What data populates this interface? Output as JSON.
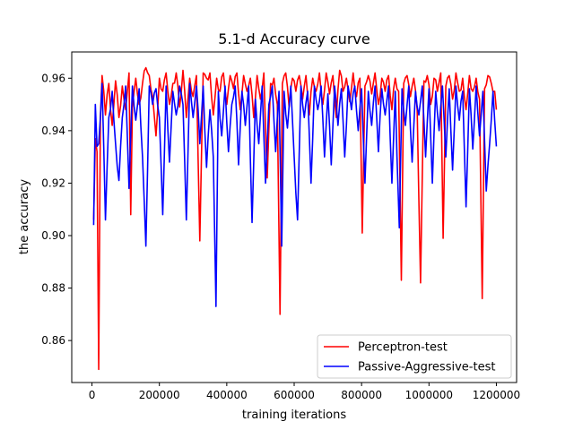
{
  "chart_data": {
    "type": "line",
    "title": "5.1-d Accuracy curve",
    "xlabel": "training iterations",
    "ylabel": "the accuracy",
    "xlim": [
      -60000,
      1260000
    ],
    "ylim": [
      0.844,
      0.97
    ],
    "xticks": [
      0,
      200000,
      400000,
      600000,
      800000,
      1000000,
      1200000
    ],
    "xtick_labels": [
      "0",
      "200000",
      "400000",
      "600000",
      "800000",
      "1000000",
      "1200000"
    ],
    "yticks": [
      0.86,
      0.88,
      0.9,
      0.92,
      0.94,
      0.96
    ],
    "ytick_labels": [
      "0.86",
      "0.88",
      "0.90",
      "0.92",
      "0.94",
      "0.96"
    ],
    "grid": false,
    "legend_position": "lower-right",
    "x_step": 5000,
    "series": [
      {
        "name": "Perceptron-test",
        "color": "#ff0000",
        "anchors": [
          [
            5000,
            0.906
          ],
          [
            10000,
            0.937
          ],
          [
            15000,
            0.932
          ],
          [
            20000,
            0.849
          ],
          [
            25000,
            0.945
          ],
          [
            30000,
            0.961
          ],
          [
            40000,
            0.946
          ],
          [
            50000,
            0.958
          ],
          [
            60000,
            0.942
          ],
          [
            70000,
            0.959
          ],
          [
            80000,
            0.945
          ],
          [
            90000,
            0.957
          ],
          [
            100000,
            0.948
          ],
          [
            110000,
            0.962
          ],
          [
            115000,
            0.908
          ],
          [
            120000,
            0.949
          ],
          [
            130000,
            0.96
          ],
          [
            140000,
            0.95
          ],
          [
            150000,
            0.958
          ],
          [
            160000,
            0.964
          ],
          [
            170000,
            0.961
          ],
          [
            180000,
            0.953
          ],
          [
            190000,
            0.938
          ],
          [
            200000,
            0.96
          ],
          [
            210000,
            0.955
          ],
          [
            220000,
            0.962
          ],
          [
            230000,
            0.95
          ],
          [
            240000,
            0.958
          ],
          [
            250000,
            0.962
          ],
          [
            260000,
            0.949
          ],
          [
            270000,
            0.963
          ],
          [
            280000,
            0.945
          ],
          [
            290000,
            0.96
          ],
          [
            300000,
            0.953
          ],
          [
            310000,
            0.961
          ],
          [
            320000,
            0.898
          ],
          [
            330000,
            0.962
          ],
          [
            340000,
            0.96
          ],
          [
            350000,
            0.962
          ],
          [
            360000,
            0.946
          ],
          [
            370000,
            0.96
          ],
          [
            380000,
            0.955
          ],
          [
            390000,
            0.962
          ],
          [
            400000,
            0.95
          ],
          [
            410000,
            0.961
          ],
          [
            420000,
            0.956
          ],
          [
            430000,
            0.962
          ],
          [
            440000,
            0.948
          ],
          [
            450000,
            0.961
          ],
          [
            460000,
            0.955
          ],
          [
            470000,
            0.96
          ],
          [
            480000,
            0.945
          ],
          [
            490000,
            0.961
          ],
          [
            500000,
            0.952
          ],
          [
            510000,
            0.962
          ],
          [
            520000,
            0.922
          ],
          [
            530000,
            0.958
          ],
          [
            540000,
            0.96
          ],
          [
            550000,
            0.95
          ],
          [
            558000,
            0.87
          ],
          [
            565000,
            0.958
          ],
          [
            575000,
            0.962
          ],
          [
            585000,
            0.949
          ],
          [
            595000,
            0.96
          ],
          [
            605000,
            0.955
          ],
          [
            615000,
            0.961
          ],
          [
            625000,
            0.952
          ],
          [
            635000,
            0.961
          ],
          [
            645000,
            0.946
          ],
          [
            655000,
            0.96
          ],
          [
            665000,
            0.955
          ],
          [
            675000,
            0.962
          ],
          [
            685000,
            0.95
          ],
          [
            695000,
            0.962
          ],
          [
            705000,
            0.954
          ],
          [
            715000,
            0.961
          ],
          [
            725000,
            0.945
          ],
          [
            735000,
            0.963
          ],
          [
            745000,
            0.955
          ],
          [
            755000,
            0.96
          ],
          [
            765000,
            0.951
          ],
          [
            775000,
            0.962
          ],
          [
            785000,
            0.953
          ],
          [
            795000,
            0.96
          ],
          [
            802000,
            0.901
          ],
          [
            810000,
            0.957
          ],
          [
            820000,
            0.961
          ],
          [
            830000,
            0.954
          ],
          [
            840000,
            0.962
          ],
          [
            850000,
            0.95
          ],
          [
            860000,
            0.96
          ],
          [
            870000,
            0.955
          ],
          [
            880000,
            0.961
          ],
          [
            890000,
            0.948
          ],
          [
            900000,
            0.96
          ],
          [
            910000,
            0.955
          ],
          [
            918000,
            0.883
          ],
          [
            925000,
            0.958
          ],
          [
            935000,
            0.961
          ],
          [
            945000,
            0.953
          ],
          [
            955000,
            0.96
          ],
          [
            965000,
            0.948
          ],
          [
            975000,
            0.882
          ],
          [
            985000,
            0.959
          ],
          [
            995000,
            0.961
          ],
          [
            1005000,
            0.95
          ],
          [
            1015000,
            0.96
          ],
          [
            1025000,
            0.955
          ],
          [
            1035000,
            0.962
          ],
          [
            1042000,
            0.899
          ],
          [
            1050000,
            0.957
          ],
          [
            1060000,
            0.961
          ],
          [
            1070000,
            0.952
          ],
          [
            1080000,
            0.962
          ],
          [
            1090000,
            0.955
          ],
          [
            1100000,
            0.96
          ],
          [
            1110000,
            0.948
          ],
          [
            1120000,
            0.961
          ],
          [
            1130000,
            0.955
          ],
          [
            1140000,
            0.96
          ],
          [
            1150000,
            0.952
          ],
          [
            1158000,
            0.876
          ],
          [
            1165000,
            0.956
          ],
          [
            1175000,
            0.961
          ],
          [
            1185000,
            0.958
          ],
          [
            1195000,
            0.955
          ],
          [
            1200000,
            0.948
          ]
        ]
      },
      {
        "name": "Passive-Aggressive-test",
        "color": "#0000ff",
        "anchors": [
          [
            5000,
            0.904
          ],
          [
            10000,
            0.95
          ],
          [
            15000,
            0.934
          ],
          [
            20000,
            0.935
          ],
          [
            30000,
            0.958
          ],
          [
            40000,
            0.906
          ],
          [
            50000,
            0.945
          ],
          [
            60000,
            0.955
          ],
          [
            70000,
            0.935
          ],
          [
            80000,
            0.921
          ],
          [
            90000,
            0.945
          ],
          [
            100000,
            0.957
          ],
          [
            110000,
            0.918
          ],
          [
            120000,
            0.957
          ],
          [
            130000,
            0.944
          ],
          [
            140000,
            0.956
          ],
          [
            150000,
            0.93
          ],
          [
            160000,
            0.896
          ],
          [
            170000,
            0.957
          ],
          [
            180000,
            0.95
          ],
          [
            190000,
            0.956
          ],
          [
            200000,
            0.945
          ],
          [
            210000,
            0.908
          ],
          [
            220000,
            0.957
          ],
          [
            230000,
            0.928
          ],
          [
            240000,
            0.955
          ],
          [
            250000,
            0.946
          ],
          [
            260000,
            0.957
          ],
          [
            270000,
            0.95
          ],
          [
            280000,
            0.906
          ],
          [
            290000,
            0.958
          ],
          [
            300000,
            0.945
          ],
          [
            310000,
            0.957
          ],
          [
            320000,
            0.935
          ],
          [
            330000,
            0.957
          ],
          [
            340000,
            0.926
          ],
          [
            350000,
            0.948
          ],
          [
            360000,
            0.93
          ],
          [
            368000,
            0.873
          ],
          [
            375000,
            0.955
          ],
          [
            385000,
            0.938
          ],
          [
            395000,
            0.957
          ],
          [
            405000,
            0.932
          ],
          [
            415000,
            0.95
          ],
          [
            425000,
            0.957
          ],
          [
            435000,
            0.927
          ],
          [
            445000,
            0.955
          ],
          [
            455000,
            0.942
          ],
          [
            465000,
            0.957
          ],
          [
            475000,
            0.905
          ],
          [
            485000,
            0.952
          ],
          [
            495000,
            0.935
          ],
          [
            505000,
            0.957
          ],
          [
            515000,
            0.92
          ],
          [
            525000,
            0.95
          ],
          [
            535000,
            0.957
          ],
          [
            545000,
            0.932
          ],
          [
            555000,
            0.955
          ],
          [
            563000,
            0.896
          ],
          [
            570000,
            0.955
          ],
          [
            580000,
            0.941
          ],
          [
            590000,
            0.957
          ],
          [
            600000,
            0.93
          ],
          [
            610000,
            0.906
          ],
          [
            620000,
            0.957
          ],
          [
            630000,
            0.945
          ],
          [
            640000,
            0.955
          ],
          [
            650000,
            0.92
          ],
          [
            660000,
            0.957
          ],
          [
            670000,
            0.948
          ],
          [
            680000,
            0.957
          ],
          [
            690000,
            0.93
          ],
          [
            700000,
            0.954
          ],
          [
            710000,
            0.927
          ],
          [
            720000,
            0.957
          ],
          [
            730000,
            0.942
          ],
          [
            740000,
            0.956
          ],
          [
            750000,
            0.93
          ],
          [
            760000,
            0.957
          ],
          [
            770000,
            0.948
          ],
          [
            780000,
            0.957
          ],
          [
            790000,
            0.94
          ],
          [
            800000,
            0.956
          ],
          [
            810000,
            0.92
          ],
          [
            820000,
            0.955
          ],
          [
            830000,
            0.942
          ],
          [
            840000,
            0.957
          ],
          [
            850000,
            0.932
          ],
          [
            860000,
            0.956
          ],
          [
            870000,
            0.946
          ],
          [
            880000,
            0.957
          ],
          [
            890000,
            0.92
          ],
          [
            900000,
            0.955
          ],
          [
            912000,
            0.903
          ],
          [
            920000,
            0.956
          ],
          [
            930000,
            0.942
          ],
          [
            940000,
            0.957
          ],
          [
            950000,
            0.928
          ],
          [
            960000,
            0.955
          ],
          [
            970000,
            0.946
          ],
          [
            980000,
            0.957
          ],
          [
            990000,
            0.93
          ],
          [
            1000000,
            0.956
          ],
          [
            1010000,
            0.92
          ],
          [
            1020000,
            0.955
          ],
          [
            1030000,
            0.94
          ],
          [
            1040000,
            0.957
          ],
          [
            1050000,
            0.93
          ],
          [
            1060000,
            0.956
          ],
          [
            1070000,
            0.925
          ],
          [
            1080000,
            0.957
          ],
          [
            1090000,
            0.944
          ],
          [
            1100000,
            0.955
          ],
          [
            1110000,
            0.911
          ],
          [
            1120000,
            0.956
          ],
          [
            1130000,
            0.933
          ],
          [
            1140000,
            0.957
          ],
          [
            1150000,
            0.938
          ],
          [
            1160000,
            0.955
          ],
          [
            1170000,
            0.917
          ],
          [
            1180000,
            0.935
          ],
          [
            1190000,
            0.955
          ],
          [
            1200000,
            0.934
          ]
        ]
      }
    ]
  }
}
